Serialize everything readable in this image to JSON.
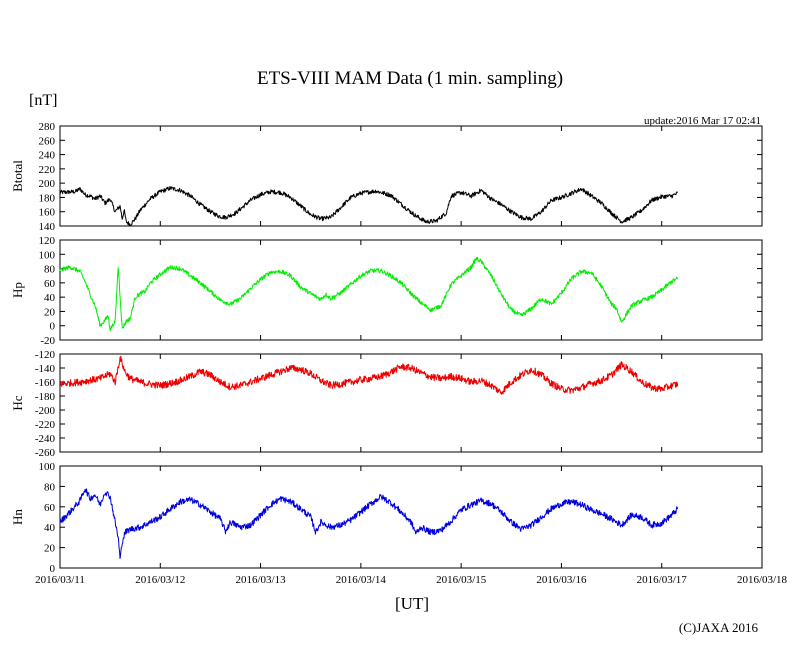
{
  "chart_data": {
    "type": "line",
    "title": "ETS-VIII MAM Data (1 min. sampling)",
    "unit": "[nT]",
    "update": "update:2016 Mar 17 02:41",
    "xlabel": "[UT]",
    "credit": "(C)JAXA 2016",
    "x_range_days": [
      0,
      7
    ],
    "x_ticks": [
      "2016/03/11",
      "2016/03/12",
      "2016/03/13",
      "2016/03/14",
      "2016/03/15",
      "2016/03/16",
      "2016/03/17",
      "2016/03/18"
    ],
    "panels": [
      {
        "name": "Btotal",
        "color": "#000000",
        "ylim": [
          140,
          280
        ],
        "yticks": [
          140,
          160,
          180,
          200,
          220,
          240,
          260,
          280
        ],
        "noise": 3,
        "points": [
          [
            0,
            187
          ],
          [
            0.15,
            188
          ],
          [
            0.2,
            192
          ],
          [
            0.25,
            184
          ],
          [
            0.3,
            182
          ],
          [
            0.35,
            178
          ],
          [
            0.4,
            182
          ],
          [
            0.45,
            172
          ],
          [
            0.5,
            178
          ],
          [
            0.55,
            160
          ],
          [
            0.6,
            168
          ],
          [
            0.62,
            150
          ],
          [
            0.64,
            162
          ],
          [
            0.66,
            146
          ],
          [
            0.7,
            142
          ],
          [
            0.75,
            150
          ],
          [
            0.8,
            162
          ],
          [
            0.9,
            178
          ],
          [
            1.0,
            188
          ],
          [
            1.1,
            193
          ],
          [
            1.2,
            190
          ],
          [
            1.3,
            182
          ],
          [
            1.4,
            170
          ],
          [
            1.5,
            160
          ],
          [
            1.58,
            154
          ],
          [
            1.65,
            152
          ],
          [
            1.75,
            158
          ],
          [
            1.9,
            176
          ],
          [
            2.0,
            184
          ],
          [
            2.1,
            188
          ],
          [
            2.2,
            187
          ],
          [
            2.3,
            180
          ],
          [
            2.4,
            168
          ],
          [
            2.5,
            156
          ],
          [
            2.6,
            150
          ],
          [
            2.7,
            152
          ],
          [
            2.8,
            166
          ],
          [
            2.9,
            180
          ],
          [
            3.0,
            186
          ],
          [
            3.15,
            189
          ],
          [
            3.3,
            183
          ],
          [
            3.45,
            165
          ],
          [
            3.55,
            154
          ],
          [
            3.65,
            146
          ],
          [
            3.75,
            147
          ],
          [
            3.85,
            158
          ],
          [
            3.9,
            182
          ],
          [
            4.0,
            187
          ],
          [
            4.1,
            182
          ],
          [
            4.2,
            190
          ],
          [
            4.3,
            178
          ],
          [
            4.4,
            170
          ],
          [
            4.5,
            160
          ],
          [
            4.6,
            152
          ],
          [
            4.7,
            150
          ],
          [
            4.8,
            160
          ],
          [
            4.9,
            176
          ],
          [
            5.0,
            180
          ],
          [
            5.1,
            186
          ],
          [
            5.2,
            192
          ],
          [
            5.3,
            182
          ],
          [
            5.4,
            172
          ],
          [
            5.5,
            158
          ],
          [
            5.6,
            146
          ],
          [
            5.7,
            152
          ],
          [
            5.8,
            162
          ],
          [
            5.9,
            176
          ],
          [
            6.0,
            181
          ],
          [
            6.1,
            182
          ],
          [
            6.16,
            186
          ]
        ]
      },
      {
        "name": "Hp",
        "color": "#00ee00",
        "ylim": [
          -20,
          120
        ],
        "yticks": [
          -20,
          0,
          20,
          40,
          60,
          80,
          100,
          120
        ],
        "noise": 3,
        "points": [
          [
            0,
            78
          ],
          [
            0.1,
            82
          ],
          [
            0.2,
            76
          ],
          [
            0.25,
            62
          ],
          [
            0.3,
            44
          ],
          [
            0.35,
            28
          ],
          [
            0.38,
            12
          ],
          [
            0.4,
            0
          ],
          [
            0.45,
            8
          ],
          [
            0.48,
            14
          ],
          [
            0.5,
            -5
          ],
          [
            0.55,
            6
          ],
          [
            0.58,
            84
          ],
          [
            0.62,
            -4
          ],
          [
            0.66,
            6
          ],
          [
            0.7,
            10
          ],
          [
            0.75,
            40
          ],
          [
            0.8,
            45
          ],
          [
            0.85,
            48
          ],
          [
            0.9,
            60
          ],
          [
            1.0,
            72
          ],
          [
            1.1,
            82
          ],
          [
            1.2,
            80
          ],
          [
            1.3,
            70
          ],
          [
            1.4,
            60
          ],
          [
            1.5,
            48
          ],
          [
            1.6,
            36
          ],
          [
            1.7,
            30
          ],
          [
            1.8,
            38
          ],
          [
            1.9,
            52
          ],
          [
            2.0,
            65
          ],
          [
            2.1,
            75
          ],
          [
            2.2,
            76
          ],
          [
            2.3,
            70
          ],
          [
            2.4,
            54
          ],
          [
            2.5,
            45
          ],
          [
            2.6,
            37
          ],
          [
            2.65,
            44
          ],
          [
            2.7,
            38
          ],
          [
            2.8,
            46
          ],
          [
            2.9,
            58
          ],
          [
            3.0,
            70
          ],
          [
            3.1,
            77
          ],
          [
            3.2,
            77
          ],
          [
            3.3,
            70
          ],
          [
            3.4,
            60
          ],
          [
            3.5,
            45
          ],
          [
            3.6,
            32
          ],
          [
            3.7,
            22
          ],
          [
            3.8,
            28
          ],
          [
            3.9,
            58
          ],
          [
            4.0,
            70
          ],
          [
            4.1,
            82
          ],
          [
            4.15,
            94
          ],
          [
            4.2,
            90
          ],
          [
            4.3,
            70
          ],
          [
            4.4,
            44
          ],
          [
            4.5,
            22
          ],
          [
            4.6,
            14
          ],
          [
            4.7,
            24
          ],
          [
            4.8,
            38
          ],
          [
            4.9,
            30
          ],
          [
            5.0,
            46
          ],
          [
            5.1,
            66
          ],
          [
            5.2,
            76
          ],
          [
            5.3,
            74
          ],
          [
            5.4,
            55
          ],
          [
            5.5,
            30
          ],
          [
            5.55,
            24
          ],
          [
            5.6,
            5
          ],
          [
            5.7,
            28
          ],
          [
            5.8,
            35
          ],
          [
            5.9,
            40
          ],
          [
            6.0,
            50
          ],
          [
            6.1,
            62
          ],
          [
            6.16,
            66
          ]
        ]
      },
      {
        "name": "Hc",
        "color": "#ee0000",
        "ylim": [
          -260,
          -120
        ],
        "yticks": [
          -260,
          -240,
          -220,
          -200,
          -180,
          -160,
          -140,
          -120
        ],
        "noise": 5,
        "points": [
          [
            0,
            -163
          ],
          [
            0.2,
            -160
          ],
          [
            0.4,
            -155
          ],
          [
            0.5,
            -148
          ],
          [
            0.55,
            -160
          ],
          [
            0.6,
            -125
          ],
          [
            0.65,
            -146
          ],
          [
            0.7,
            -155
          ],
          [
            0.8,
            -160
          ],
          [
            0.9,
            -163
          ],
          [
            1.0,
            -165
          ],
          [
            1.1,
            -162
          ],
          [
            1.2,
            -158
          ],
          [
            1.3,
            -152
          ],
          [
            1.4,
            -145
          ],
          [
            1.5,
            -150
          ],
          [
            1.6,
            -160
          ],
          [
            1.7,
            -167
          ],
          [
            1.8,
            -165
          ],
          [
            1.9,
            -160
          ],
          [
            2.0,
            -155
          ],
          [
            2.1,
            -150
          ],
          [
            2.3,
            -140
          ],
          [
            2.4,
            -142
          ],
          [
            2.5,
            -148
          ],
          [
            2.6,
            -158
          ],
          [
            2.7,
            -165
          ],
          [
            2.8,
            -163
          ],
          [
            2.9,
            -160
          ],
          [
            3.0,
            -157
          ],
          [
            3.1,
            -155
          ],
          [
            3.2,
            -152
          ],
          [
            3.3,
            -146
          ],
          [
            3.4,
            -138
          ],
          [
            3.5,
            -140
          ],
          [
            3.6,
            -147
          ],
          [
            3.7,
            -153
          ],
          [
            3.8,
            -155
          ],
          [
            3.9,
            -152
          ],
          [
            4.0,
            -155
          ],
          [
            4.1,
            -160
          ],
          [
            4.2,
            -158
          ],
          [
            4.3,
            -165
          ],
          [
            4.4,
            -175
          ],
          [
            4.5,
            -160
          ],
          [
            4.6,
            -150
          ],
          [
            4.7,
            -142
          ],
          [
            4.8,
            -150
          ],
          [
            4.9,
            -162
          ],
          [
            5.0,
            -170
          ],
          [
            5.1,
            -172
          ],
          [
            5.2,
            -168
          ],
          [
            5.3,
            -162
          ],
          [
            5.4,
            -158
          ],
          [
            5.5,
            -150
          ],
          [
            5.6,
            -135
          ],
          [
            5.7,
            -145
          ],
          [
            5.8,
            -160
          ],
          [
            5.9,
            -168
          ],
          [
            6.0,
            -170
          ],
          [
            6.1,
            -165
          ],
          [
            6.16,
            -163
          ]
        ]
      },
      {
        "name": "Hn",
        "color": "#0000dd",
        "ylim": [
          0,
          100
        ],
        "yticks": [
          0,
          20,
          40,
          60,
          80,
          100
        ],
        "noise": 3,
        "points": [
          [
            0,
            45
          ],
          [
            0.1,
            55
          ],
          [
            0.2,
            66
          ],
          [
            0.25,
            78
          ],
          [
            0.3,
            68
          ],
          [
            0.35,
            72
          ],
          [
            0.4,
            62
          ],
          [
            0.45,
            75
          ],
          [
            0.5,
            70
          ],
          [
            0.55,
            45
          ],
          [
            0.58,
            30
          ],
          [
            0.6,
            8
          ],
          [
            0.62,
            26
          ],
          [
            0.65,
            35
          ],
          [
            0.7,
            38
          ],
          [
            0.8,
            40
          ],
          [
            0.9,
            45
          ],
          [
            1.0,
            50
          ],
          [
            1.1,
            58
          ],
          [
            1.2,
            65
          ],
          [
            1.3,
            67
          ],
          [
            1.4,
            62
          ],
          [
            1.5,
            55
          ],
          [
            1.6,
            48
          ],
          [
            1.65,
            36
          ],
          [
            1.7,
            45
          ],
          [
            1.8,
            40
          ],
          [
            1.9,
            42
          ],
          [
            2.0,
            52
          ],
          [
            2.1,
            62
          ],
          [
            2.2,
            68
          ],
          [
            2.3,
            65
          ],
          [
            2.4,
            58
          ],
          [
            2.5,
            50
          ],
          [
            2.55,
            35
          ],
          [
            2.6,
            45
          ],
          [
            2.7,
            40
          ],
          [
            2.8,
            42
          ],
          [
            2.9,
            47
          ],
          [
            3.0,
            55
          ],
          [
            3.1,
            63
          ],
          [
            3.2,
            70
          ],
          [
            3.3,
            64
          ],
          [
            3.4,
            55
          ],
          [
            3.5,
            45
          ],
          [
            3.55,
            34
          ],
          [
            3.6,
            40
          ],
          [
            3.7,
            35
          ],
          [
            3.8,
            37
          ],
          [
            3.9,
            46
          ],
          [
            4.0,
            57
          ],
          [
            4.1,
            62
          ],
          [
            4.2,
            66
          ],
          [
            4.3,
            63
          ],
          [
            4.4,
            55
          ],
          [
            4.5,
            45
          ],
          [
            4.6,
            38
          ],
          [
            4.7,
            42
          ],
          [
            4.8,
            50
          ],
          [
            4.9,
            58
          ],
          [
            5.0,
            63
          ],
          [
            5.1,
            65
          ],
          [
            5.2,
            62
          ],
          [
            5.3,
            57
          ],
          [
            5.4,
            53
          ],
          [
            5.5,
            48
          ],
          [
            5.6,
            42
          ],
          [
            5.7,
            52
          ],
          [
            5.8,
            50
          ],
          [
            5.9,
            42
          ],
          [
            6.0,
            44
          ],
          [
            6.1,
            52
          ],
          [
            6.16,
            58
          ]
        ]
      }
    ]
  }
}
